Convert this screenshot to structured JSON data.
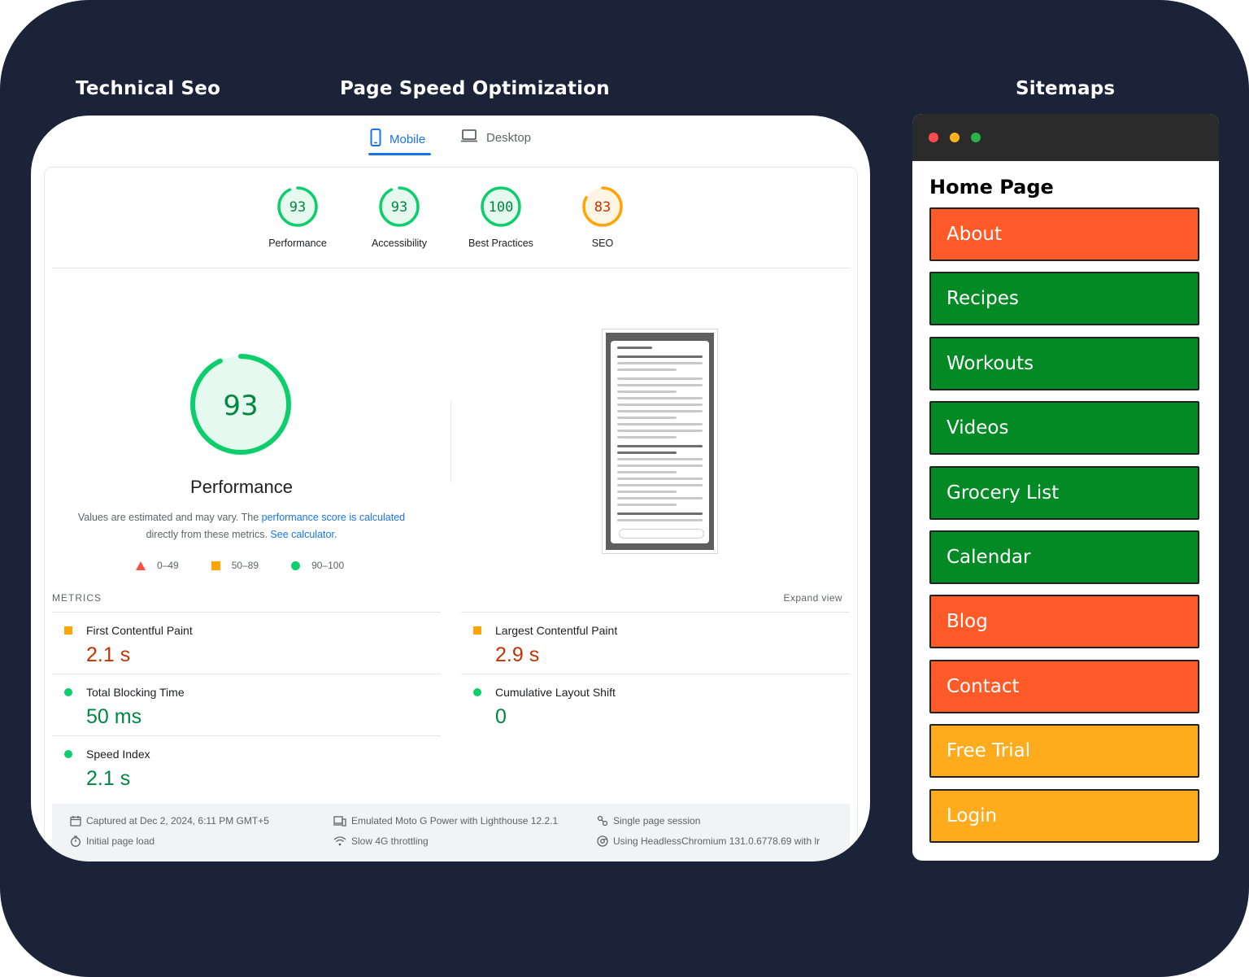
{
  "headings": {
    "technical_seo": "Technical Seo",
    "page_speed": "Page Speed Optimization",
    "sitemaps": "Sitemaps"
  },
  "pagespeed": {
    "tabs": {
      "mobile": "Mobile",
      "desktop": "Desktop"
    },
    "scores": [
      {
        "value": "93",
        "label": "Performance",
        "color": "#0cce6b"
      },
      {
        "value": "93",
        "label": "Accessibility",
        "color": "#0cce6b"
      },
      {
        "value": "100",
        "label": "Best Practices",
        "color": "#0cce6b"
      },
      {
        "value": "83",
        "label": "SEO",
        "color": "#ffa400"
      }
    ],
    "performance": {
      "score": "93",
      "title": "Performance",
      "desc_prefix": "Values are estimated and may vary. The ",
      "desc_link1": "performance score is calculated",
      "desc_middle": "directly from these metrics. ",
      "desc_link2": "See calculator."
    },
    "legend": {
      "red": "0–49",
      "orange": "50–89",
      "green": "90–100"
    },
    "metrics_header": "METRICS",
    "expand_view": "Expand view",
    "metrics": [
      {
        "name": "First Contentful Paint",
        "value": "2.1 s",
        "status": "orange"
      },
      {
        "name": "Largest Contentful Paint",
        "value": "2.9 s",
        "status": "orange"
      },
      {
        "name": "Total Blocking Time",
        "value": "50 ms",
        "status": "green"
      },
      {
        "name": "Cumulative Layout Shift",
        "value": "0",
        "status": "green"
      },
      {
        "name": "Speed Index",
        "value": "2.1 s",
        "status": "green"
      }
    ],
    "footer": {
      "captured": "Captured at Dec 2, 2024, 6:11 PM GMT+5",
      "initial": "Initial page load",
      "device": "Emulated Moto G Power with Lighthouse 12.2.1",
      "throttling": "Slow 4G throttling",
      "session": "Single page session",
      "browser": "Using HeadlessChromium 131.0.6778.69 with lr"
    },
    "colors": {
      "green": "#0cce6b",
      "orange": "#ffa400",
      "red": "#ff4e42",
      "accent": "#1a73e8"
    }
  },
  "sitemap": {
    "title": "Home Page",
    "items": [
      {
        "label": "About",
        "color": "#ff5a28"
      },
      {
        "label": "Recipes",
        "color": "#038a25"
      },
      {
        "label": "Workouts",
        "color": "#038a25"
      },
      {
        "label": "Videos",
        "color": "#038a25"
      },
      {
        "label": "Grocery List",
        "color": "#038a25"
      },
      {
        "label": "Calendar",
        "color": "#038a25"
      },
      {
        "label": "Blog",
        "color": "#ff5a28"
      },
      {
        "label": "Contact",
        "color": "#ff5a28"
      },
      {
        "label": "Free Trial",
        "color": "#ffab1e"
      },
      {
        "label": "Login",
        "color": "#ffab1e"
      }
    ],
    "dots": [
      "#ff4b4b",
      "#ffb21a",
      "#29b34a"
    ]
  }
}
